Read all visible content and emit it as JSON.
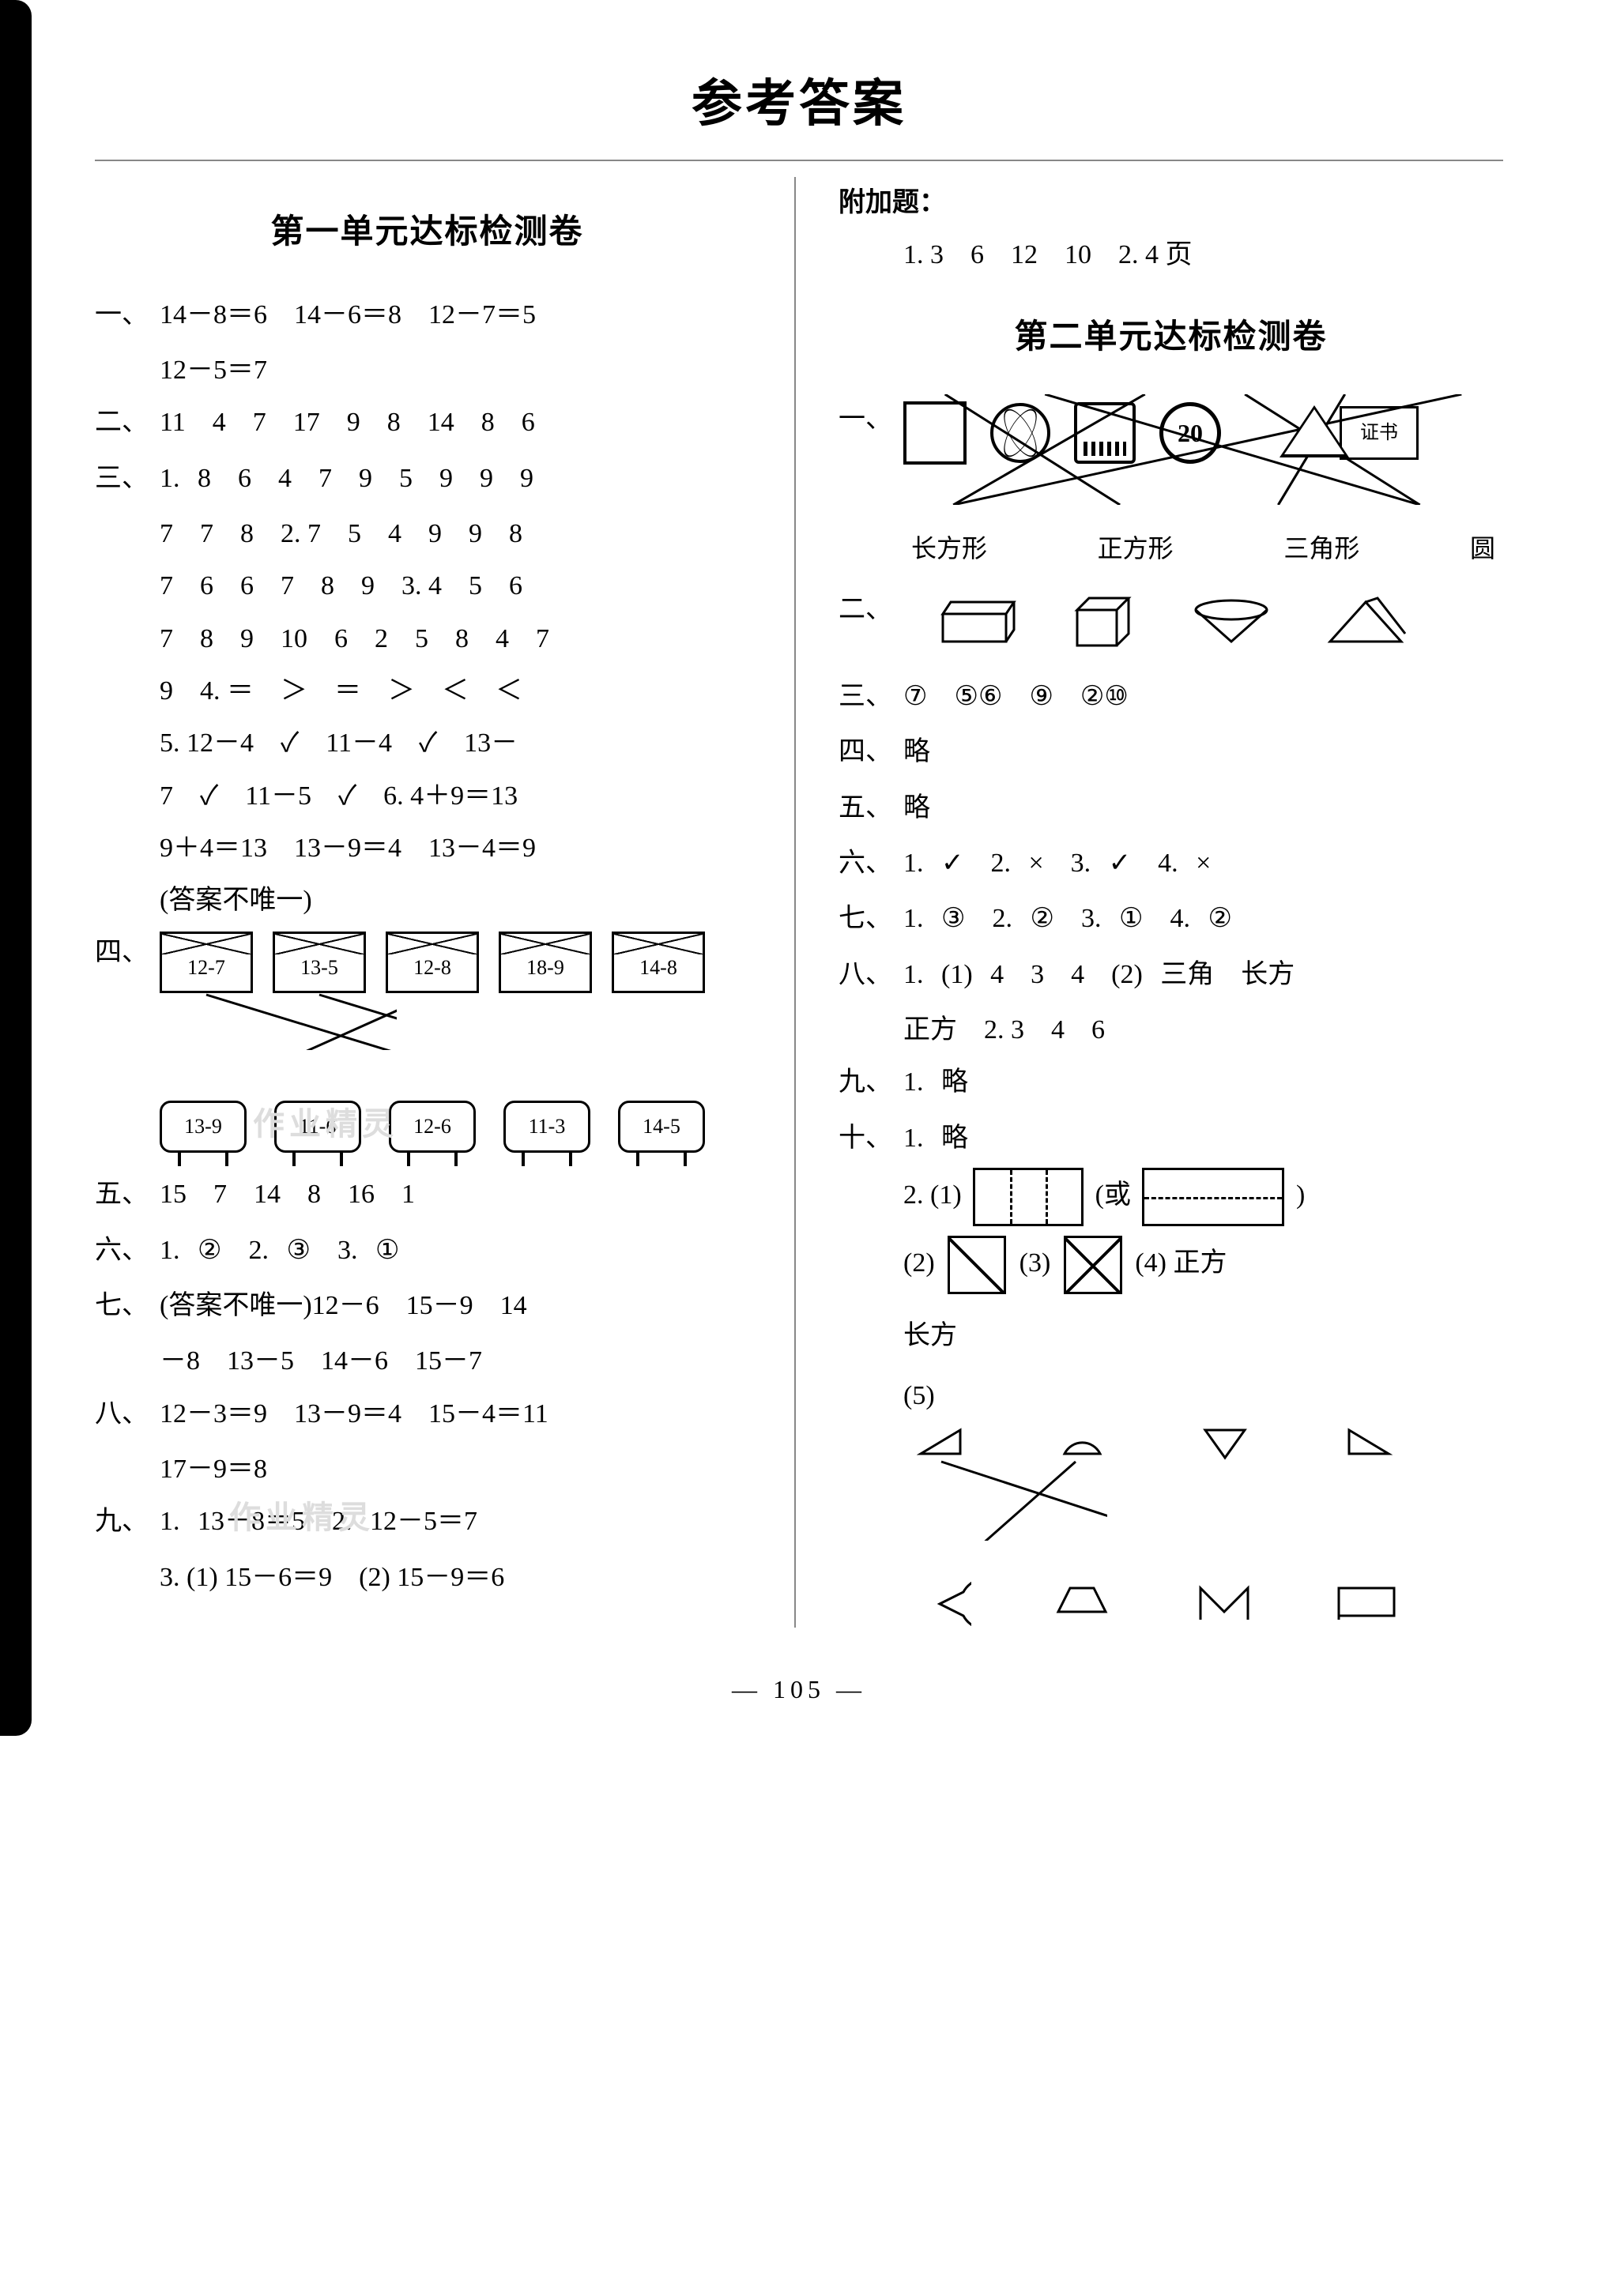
{
  "page_title": "参考答案",
  "page_number": "— 105 —",
  "watermark": "作业精灵",
  "left": {
    "section_title": "第一单元达标检测卷",
    "q1": {
      "label": "一、",
      "line1": "14－8＝6　14－6＝8　12－7＝5",
      "line2": "12－5＝7"
    },
    "q2": {
      "label": "二、",
      "content": "11　4　7　17　9　8　14　8　6"
    },
    "q3": {
      "label": "三、",
      "l1": "1. 8　6　4　7　9　5　9　9　9",
      "l2": "7　7　8　2. 7　5　4　9　9　8",
      "l3": "7　6　6　7　8　9　3. 4　5　6",
      "l4": "7　8　9　10　6　2　5　8　4　7",
      "l5": "9　4. ＝　＞　＝　＞　＜　＜",
      "l6": "5. 12－4　✓　11－4　✓　13－",
      "l7": "7　✓　11－5　✓　6. 4＋9＝13",
      "l8": "9＋4＝13　13－9＝4　13－4＝9",
      "l9": "(答案不唯一)"
    },
    "q4": {
      "label": "四、",
      "top": [
        "12-7",
        "13-5",
        "12-8",
        "18-9",
        "14-8"
      ],
      "bot": [
        "13-9",
        "11-6",
        "12-6",
        "11-3",
        "14-5"
      ],
      "edges": [
        [
          0,
          3
        ],
        [
          1,
          4
        ],
        [
          2,
          0
        ],
        [
          3,
          1
        ],
        [
          4,
          2
        ]
      ]
    },
    "q5": {
      "label": "五、",
      "content": "15　7　14　8　16　1"
    },
    "q6": {
      "label": "六、",
      "content": "1. ②　2. ③　3. ①"
    },
    "q7": {
      "label": "七、",
      "l1": "(答案不唯一)12－6　15－9　14",
      "l2": "－8　13－5　14－6　15－7"
    },
    "q8": {
      "label": "八、",
      "l1": "12－3＝9　13－9＝4　15－4＝11",
      "l2": "17－9＝8"
    },
    "q9": {
      "label": "九、",
      "l1": "1. 13－8＝5　2. 12－5＝7",
      "l2": "3. (1) 15－6＝9　(2) 15－9＝6"
    }
  },
  "right": {
    "extra_label": "附加题：",
    "extra_content": "1. 3　6　12　10　2. 4 页",
    "section_title": "第二单元达标检测卷",
    "q1": {
      "label": "一、",
      "labels": [
        "长方形",
        "正方形",
        "三角形",
        "圆"
      ],
      "cert_text": "证书",
      "circ_text": "20"
    },
    "q2": {
      "label": "二、"
    },
    "q3": {
      "label": "三、",
      "content": "⑦　⑤⑥　⑨　②⑩"
    },
    "q4": {
      "label": "四、",
      "content": "略"
    },
    "q5": {
      "label": "五、",
      "content": "略"
    },
    "q6": {
      "label": "六、",
      "content": "1. ✓　2. ×　3. ✓　4. ×"
    },
    "q7": {
      "label": "七、",
      "content": "1. ③　2. ②　3. ①　4. ②"
    },
    "q8": {
      "label": "八、",
      "l1": "1. (1) 4　3　4　(2) 三角　长方",
      "l2": "正方　2. 3　4　6"
    },
    "q9": {
      "label": "九、",
      "content": "1. 略"
    },
    "q10": {
      "label": "十、",
      "l1": "1. 略",
      "l2a": "2. (1)",
      "l2b": "(或",
      "l2c": ")",
      "l3a": "(2)",
      "l3b": "(3)",
      "l3c": "(4) 正方",
      "l4": "长方",
      "l5": "(5)"
    }
  },
  "colors": {
    "text": "#000000",
    "bg": "#ffffff",
    "rule": "#888888",
    "wm": "#dddddd"
  }
}
